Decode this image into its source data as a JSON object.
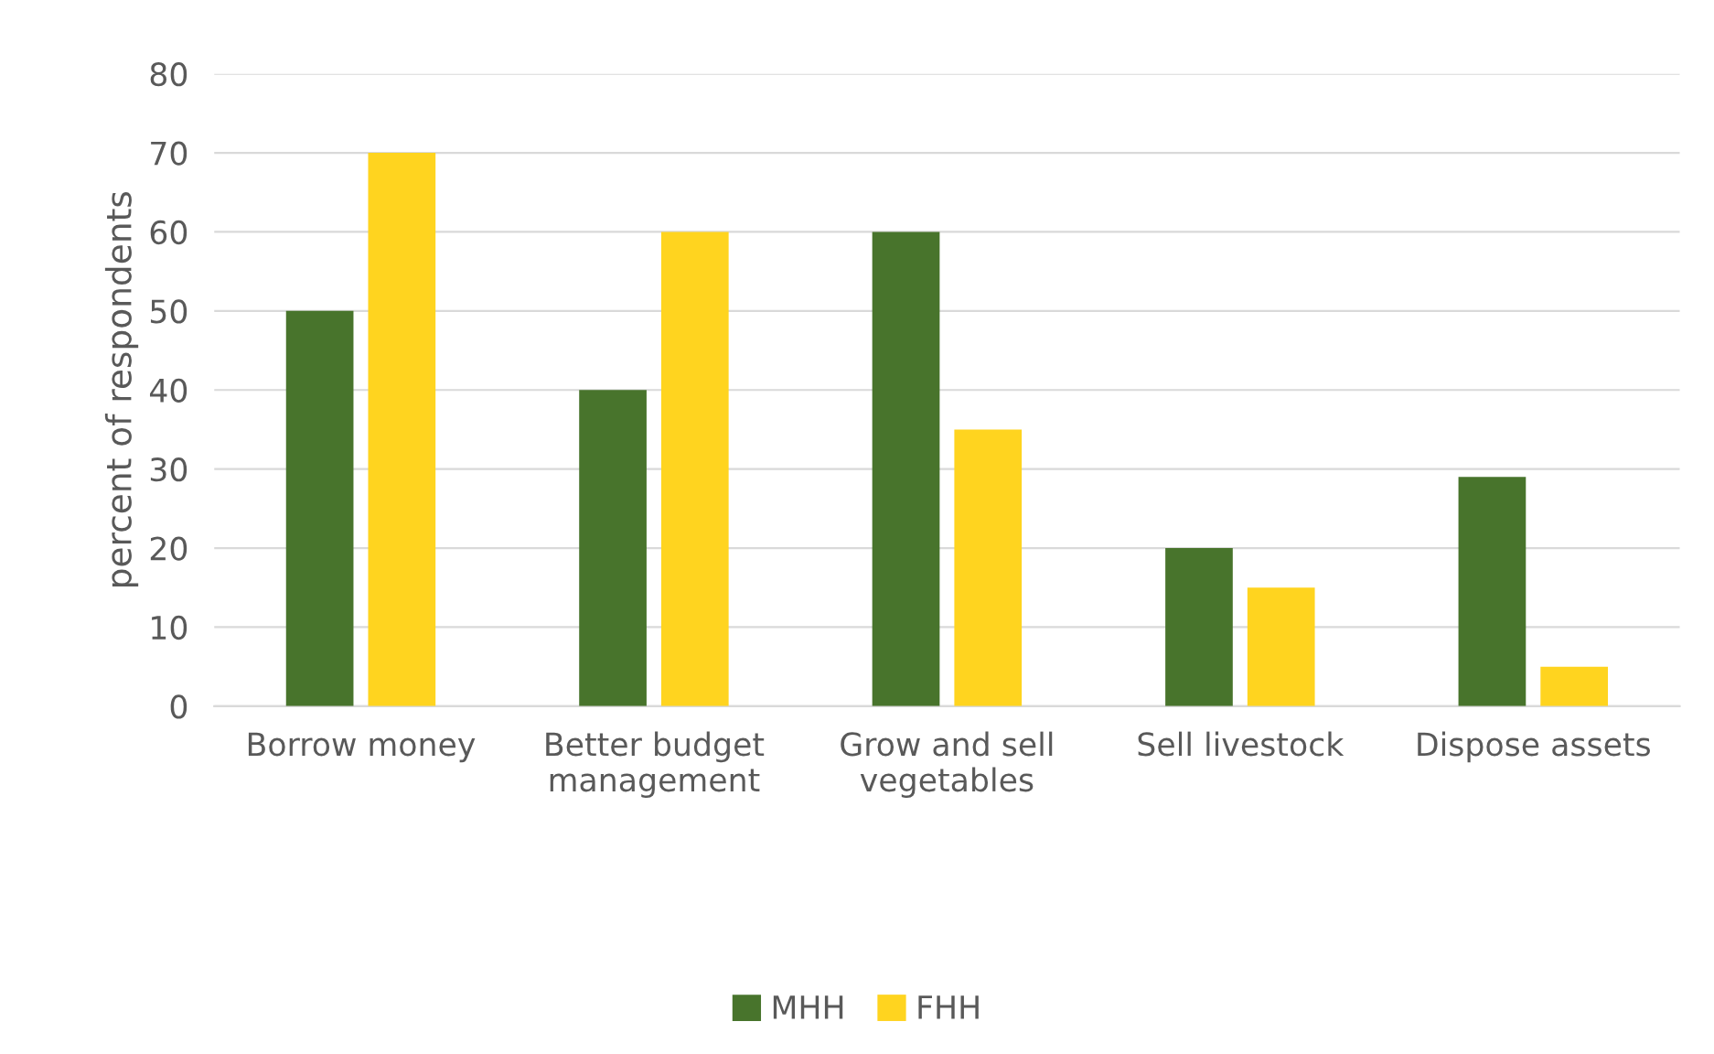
{
  "chart_data": {
    "type": "bar",
    "ylabel": "percent of respondents",
    "categories": [
      "Borrow money",
      "Better budget\nmanagement",
      "Grow and sell\nvegetables",
      "Sell livestock",
      "Dispose assets"
    ],
    "series": [
      {
        "name": "MHH",
        "color": "#48742c",
        "values": [
          50,
          40,
          60,
          20,
          29
        ]
      },
      {
        "name": "FHH",
        "color": "#ffd41f",
        "values": [
          70,
          60,
          35,
          15,
          5
        ]
      }
    ],
    "ylim": [
      0,
      80
    ],
    "yticks": [
      0,
      10,
      20,
      30,
      40,
      50,
      60,
      70,
      80
    ],
    "grid": "y",
    "legend": "bottom"
  }
}
